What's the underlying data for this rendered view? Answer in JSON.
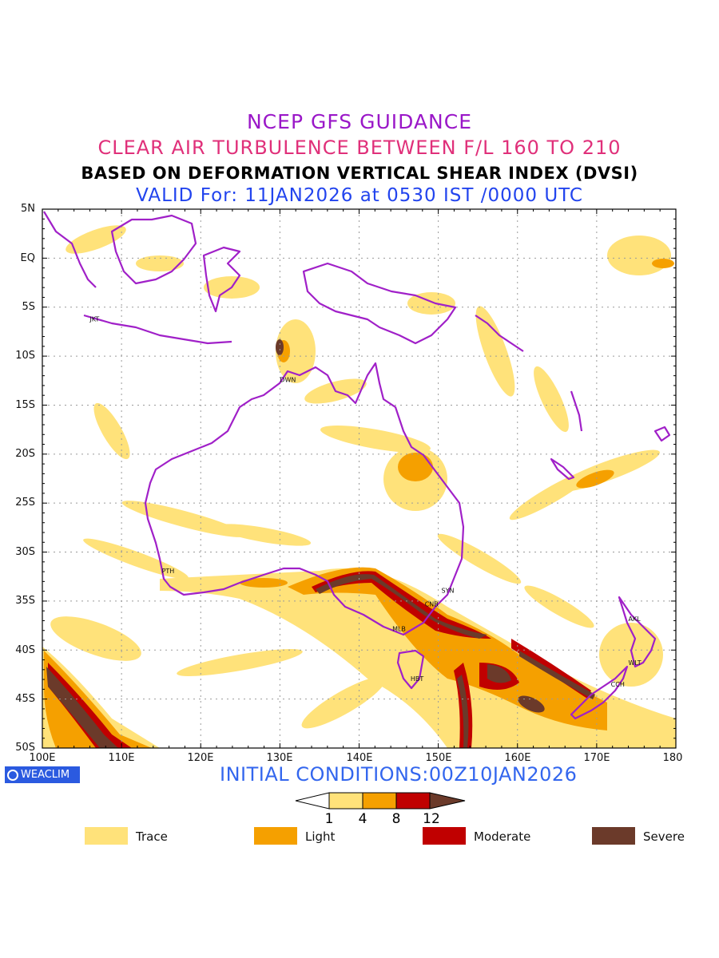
{
  "header": {
    "line1": "NCEP GFS GUIDANCE",
    "line2": "CLEAR AIR TURBULENCE BETWEEN F/L 160 TO 210",
    "line3": "BASED ON DEFORMATION VERTICAL SHEAR INDEX (DVSI)",
    "line4": "VALID For: 11JAN2026 at 0530 IST /0000 UTC"
  },
  "axes": {
    "lat_labels": [
      "5N",
      "EQ",
      "5S",
      "10S",
      "15S",
      "20S",
      "25S",
      "30S",
      "35S",
      "40S",
      "45S",
      "50S"
    ],
    "lon_labels": [
      "100E",
      "110E",
      "120E",
      "130E",
      "140E",
      "150E",
      "160E",
      "170E",
      "180"
    ]
  },
  "cities": [
    {
      "name": "JKT",
      "lon": 106.8,
      "lat": -6.2
    },
    {
      "name": "DWN",
      "lon": 130.8,
      "lat": -12.4
    },
    {
      "name": "PTH",
      "lon": 115.9,
      "lat": -31.9
    },
    {
      "name": "SYN",
      "lon": 151.2,
      "lat": -33.9
    },
    {
      "name": "CNB",
      "lon": 149.1,
      "lat": -35.3
    },
    {
      "name": "MLB",
      "lon": 145.0,
      "lat": -37.8
    },
    {
      "name": "HBT",
      "lon": 147.3,
      "lat": -42.9
    },
    {
      "name": "AKL",
      "lon": 174.8,
      "lat": -36.8
    },
    {
      "name": "WLT",
      "lon": 174.8,
      "lat": -41.3
    },
    {
      "name": "CCH",
      "lon": 172.6,
      "lat": -43.5
    }
  ],
  "brand": "WEACLIM",
  "initial_conditions": "INITIAL CONDITIONS:00Z10JAN2026",
  "scale": {
    "thresholds": [
      "1",
      "4",
      "8",
      "12"
    ],
    "colors": [
      "#ffffff",
      "#ffe27a",
      "#f5a000",
      "#c00000",
      "#6b3a2a"
    ]
  },
  "legend": [
    {
      "label": "Trace",
      "color": "#ffe27a"
    },
    {
      "label": "Light",
      "color": "#f5a000"
    },
    {
      "label": "Moderate",
      "color": "#c00000"
    },
    {
      "label": "Severe",
      "color": "#6b3a2a"
    }
  ],
  "colors": {
    "coastline": "#a020c8",
    "grid": "#9a9a9a",
    "trace": "#ffe27a",
    "light": "#f5a000",
    "moderate": "#c00000",
    "severe": "#6b3a2a"
  }
}
